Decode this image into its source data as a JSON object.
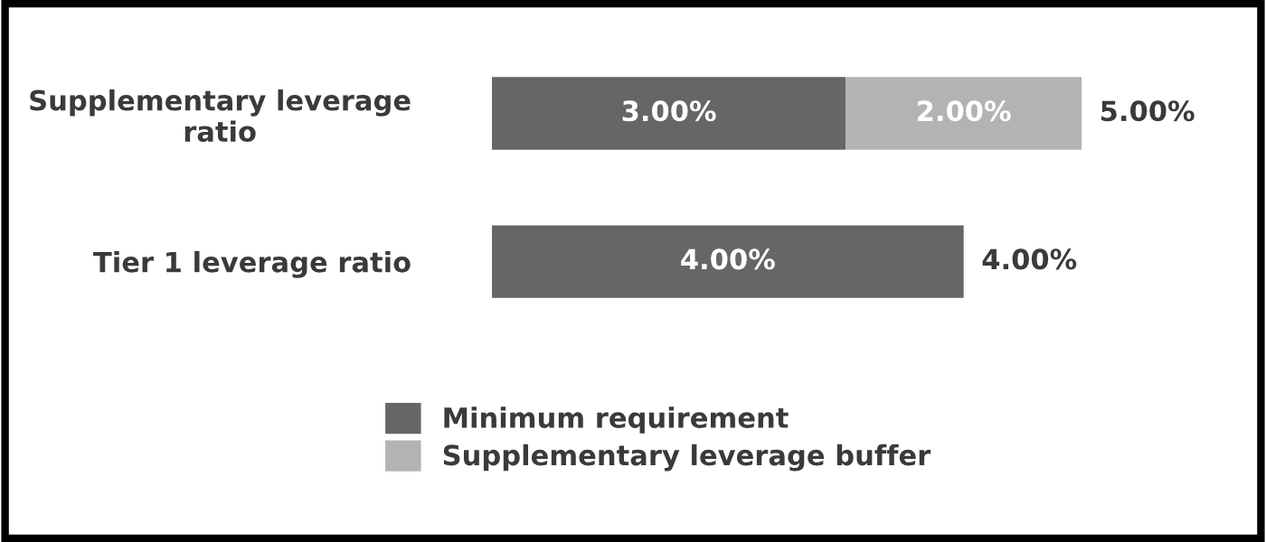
{
  "chart_data": {
    "type": "bar",
    "orientation": "horizontal",
    "stacked": true,
    "categories": [
      "Supplementary leverage\nratio",
      "Tier 1 leverage ratio"
    ],
    "series": [
      {
        "name": "Minimum requirement",
        "color": "#666666",
        "values": [
          3.0,
          4.0
        ],
        "value_labels": [
          "3.00%",
          "4.00%"
        ]
      },
      {
        "name": "Supplementary leverage buffer",
        "color": "#b3b3b3",
        "values": [
          2.0,
          null
        ],
        "value_labels": [
          "2.00%",
          null
        ]
      }
    ],
    "totals": [
      "5.00%",
      "4.00%"
    ],
    "legend": "bottom",
    "grid": false
  }
}
